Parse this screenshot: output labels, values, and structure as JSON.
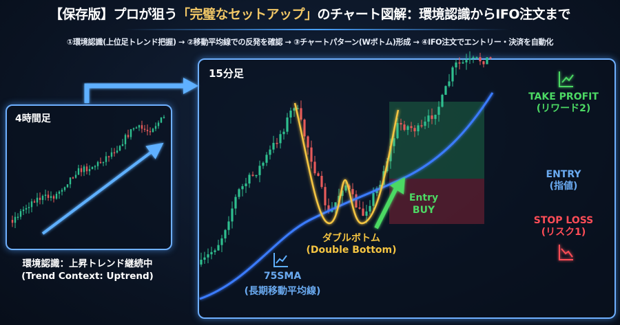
{
  "header": {
    "title_prefix": "【保存版】プロが狙う",
    "title_highlight": "「完璧なセットアップ」",
    "title_suffix": "のチャート図解：環境認識からIFO注文まで",
    "subtitle": "①環境認識(上位足トレンド把握) → ②移動平均線での反発を確認 → ③チャートパターン(Wボトム)形成 → ④IFO注文でエントリー・決済を自動化"
  },
  "left_panel": {
    "label": "4時間足",
    "caption_line1": "環境認識：上昇トレンド継続中",
    "caption_line2": "(Trend Context: Uptrend)"
  },
  "main_panel": {
    "label": "15分足",
    "pattern_label_jp": "ダブルボトム",
    "pattern_label_en": "(Double Bottom)",
    "sma_label": "75SMA",
    "sma_label_jp": "(長期移動平均線)",
    "entry_marker_line1": "Entry",
    "entry_marker_line2": "BUY",
    "levels": {
      "take_profit": {
        "label": "TAKE PROFIT",
        "sub": "(リワード2)",
        "color": "#4cd964"
      },
      "entry": {
        "label": "ENTRY",
        "sub": "(指値)",
        "color": "#6aaaf0"
      },
      "stop_loss": {
        "label": "STOP LOSS",
        "sub": "(リスク1)",
        "color": "#ff4d57"
      }
    }
  },
  "colors": {
    "bull": "#2fbf8f",
    "bear": "#e65a5a",
    "sma": "#3b7bff",
    "pattern": "#f5c542",
    "frame": "#6fb0ff"
  },
  "icons": [
    "chart-up-icon",
    "chart-down-icon",
    "sma-chart-icon",
    "arrow-right-icon",
    "entry-arrow-icon"
  ]
}
